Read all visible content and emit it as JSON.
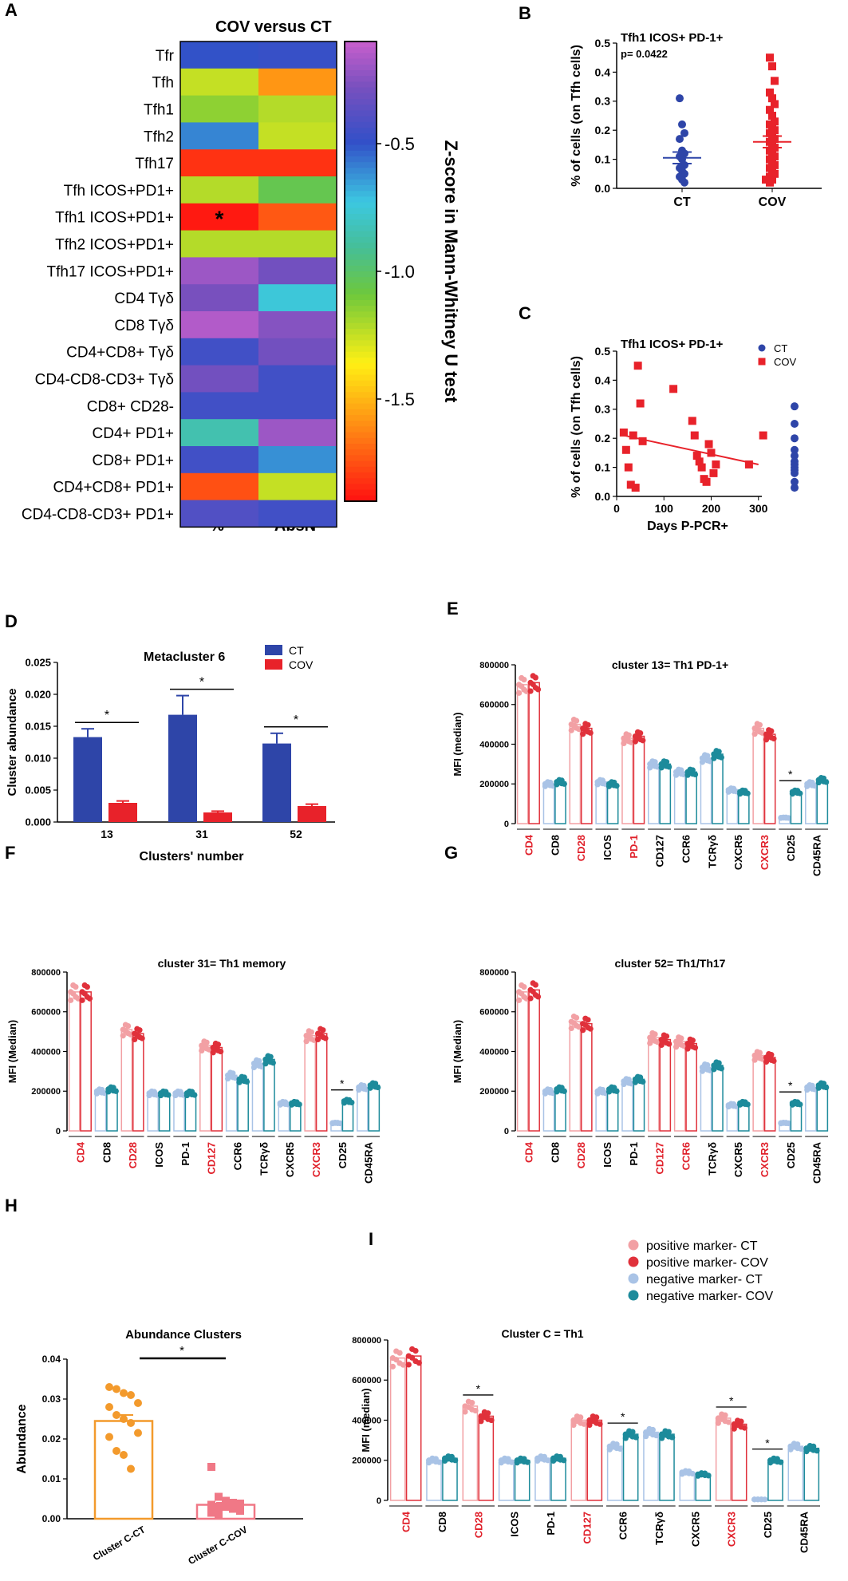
{
  "panels": {
    "A": {
      "letter": "A",
      "title": "COV versus CT",
      "columns": [
        "%",
        "AbsN"
      ],
      "colorbar_label": "Z-score in Mann-Whitney U test",
      "colorbar_ticks": [
        "-0.5",
        "-1.0",
        "-1.5"
      ],
      "star": "*"
    },
    "B": {
      "letter": "B",
      "title": "Tfh1 ICOS+ PD-1+",
      "pvalue": "p= 0.0422",
      "ylabel": "% of cells (on Tfh cells)"
    },
    "C": {
      "letter": "C",
      "title": "Tfh1 ICOS+ PD-1+",
      "ylabel": "% of cells (on Tfh cells)",
      "xlabel": "Days P-PCR+"
    },
    "D": {
      "letter": "D",
      "title": "Metacluster 6",
      "ylabel": "Cluster abundance",
      "xlabel": "Clusters' number"
    },
    "E": {
      "letter": "E",
      "title": "cluster 13= Th1 PD-1+",
      "ylabel": "MFI (median)"
    },
    "F": {
      "letter": "F",
      "title": "cluster 31= Th1 memory",
      "ylabel": "MFI (Median)"
    },
    "G": {
      "letter": "G",
      "title": "cluster 52= Th1/Th17",
      "ylabel": "MFI (Median)"
    },
    "H": {
      "letter": "H",
      "title": "Abundance Clusters",
      "ylabel": "Abundance"
    },
    "I": {
      "letter": "I",
      "title": "Cluster C = Th1",
      "ylabel": "MFI (median)",
      "legend": [
        "positive marker- CT",
        "positive marker- COV",
        "negative marker- CT",
        "negative marker- COV"
      ]
    }
  },
  "colors": {
    "ct_blue": "#2e45a8",
    "cov_red": "#e8222a",
    "pos_ct": "#f2a0a4",
    "pos_cov": "#e0313b",
    "neg_ct": "#a9c3e6",
    "neg_cov": "#1d8b9b",
    "h_ct": "#f39a2c",
    "h_cov": "#f07886"
  },
  "chart_data": [
    {
      "panel": "A",
      "type": "heatmap",
      "title": "COV versus CT",
      "rows": [
        "Tfr",
        "Tfh",
        "Tfh1",
        "Tfh2",
        "Tfh17",
        "Tfh ICOS+PD1+",
        "Tfh1 ICOS+PD1+",
        "Tfh2 ICOS+PD1+",
        "Tfh17 ICOS+PD1+",
        "CD4 Tγδ",
        "CD8 Tγδ",
        "CD4+CD8+ Tγδ",
        "CD4-CD8-CD3+ Tγδ",
        "CD8+ CD28-",
        "CD4+ PD1+",
        "CD8+ PD1+",
        "CD4+CD8+ PD1+",
        "CD4-CD8-CD3+ PD1+"
      ],
      "columns": [
        "%",
        "AbsN"
      ],
      "values": [
        [
          -0.5,
          -0.48
        ],
        [
          -1.25,
          -1.58
        ],
        [
          -1.15,
          -1.22
        ],
        [
          -0.6,
          -1.25
        ],
        [
          -1.82,
          -1.82
        ],
        [
          -1.22,
          -1.05
        ],
        [
          -1.88,
          -1.73
        ],
        [
          -1.22,
          -1.22
        ],
        [
          -0.2,
          -0.3
        ],
        [
          -0.28,
          -0.75
        ],
        [
          -0.15,
          -0.25
        ],
        [
          -0.45,
          -0.3
        ],
        [
          -0.3,
          -0.45
        ],
        [
          -0.45,
          -0.45
        ],
        [
          -0.85,
          -0.2
        ],
        [
          -0.45,
          -0.62
        ],
        [
          -1.75,
          -1.25
        ],
        [
          -0.4,
          -0.45
        ]
      ],
      "significant": [
        [
          6,
          0
        ]
      ],
      "color_scale": {
        "min": -1.9,
        "max": -0.1
      },
      "colorbar_ticks": [
        -0.5,
        -1.0,
        -1.5
      ],
      "colorbar_label": "Z-score in Mann-Whitney U test"
    },
    {
      "panel": "B",
      "type": "scatter",
      "title": "Tfh1 ICOS+ PD-1+",
      "annotation": "p= 0.0422",
      "ylabel": "% of cells (on Tfh cells)",
      "ylim": [
        0,
        0.5
      ],
      "yticks": [
        "0.0",
        "0.1",
        "0.2",
        "0.3",
        "0.4",
        "0.5"
      ],
      "categories": [
        "CT",
        "COV"
      ],
      "series": [
        {
          "name": "CT",
          "values": [
            0.31,
            0.22,
            0.19,
            0.17,
            0.13,
            0.12,
            0.11,
            0.1,
            0.08,
            0.07,
            0.06,
            0.05,
            0.04,
            0.03,
            0.02
          ],
          "mean": 0.105,
          "sem": 0.02
        },
        {
          "name": "COV",
          "values": [
            0.45,
            0.42,
            0.37,
            0.33,
            0.31,
            0.29,
            0.27,
            0.25,
            0.23,
            0.22,
            0.21,
            0.2,
            0.19,
            0.18,
            0.17,
            0.16,
            0.15,
            0.14,
            0.13,
            0.12,
            0.11,
            0.1,
            0.09,
            0.08,
            0.07,
            0.06,
            0.05,
            0.04,
            0.03,
            0.03,
            0.02
          ],
          "mean": 0.16,
          "sem": 0.02
        }
      ]
    },
    {
      "panel": "C",
      "type": "scatter",
      "title": "Tfh1 ICOS+ PD-1+",
      "xlabel": "Days P-PCR+",
      "ylabel": "% of cells (on Tfh cells)",
      "xlim": [
        0,
        400
      ],
      "ylim": [
        0,
        0.5
      ],
      "xticks": [
        "0",
        "100",
        "200",
        "300"
      ],
      "yticks": [
        "0.0",
        "0.1",
        "0.2",
        "0.3",
        "0.4",
        "0.5"
      ],
      "series": [
        {
          "name": "CT",
          "x": [
            400,
            400,
            400,
            400,
            400,
            400,
            400,
            400,
            400,
            400,
            400,
            400
          ],
          "y": [
            0.31,
            0.25,
            0.2,
            0.16,
            0.14,
            0.12,
            0.11,
            0.1,
            0.09,
            0.08,
            0.05,
            0.03
          ]
        },
        {
          "name": "COV",
          "x": [
            15,
            20,
            25,
            30,
            35,
            40,
            45,
            50,
            55,
            120,
            160,
            165,
            170,
            175,
            180,
            185,
            190,
            195,
            200,
            205,
            210,
            280,
            310
          ],
          "y": [
            0.22,
            0.16,
            0.1,
            0.04,
            0.21,
            0.03,
            0.45,
            0.32,
            0.19,
            0.37,
            0.26,
            0.21,
            0.14,
            0.12,
            0.1,
            0.06,
            0.05,
            0.18,
            0.15,
            0.08,
            0.11,
            0.11,
            0.21
          ]
        }
      ],
      "trendline": {
        "x": [
          15,
          300
        ],
        "y": [
          0.21,
          0.11
        ]
      }
    },
    {
      "panel": "D",
      "type": "bar",
      "title": "Metacluster 6",
      "xlabel": "Clusters' number",
      "ylabel": "Cluster abundance",
      "categories": [
        "13",
        "31",
        "52"
      ],
      "ylim": [
        0,
        0.025
      ],
      "yticks": [
        "0.000",
        "0.005",
        "0.010",
        "0.015",
        "0.020",
        "0.025"
      ],
      "series": [
        {
          "name": "CT",
          "values": [
            0.0133,
            0.0168,
            0.0123
          ],
          "errors": [
            0.0013,
            0.003,
            0.0016
          ]
        },
        {
          "name": "COV",
          "values": [
            0.003,
            0.0015,
            0.0025
          ],
          "errors": [
            0.0003,
            0.0002,
            0.0003
          ]
        }
      ],
      "significance": [
        "*",
        "*",
        "*"
      ]
    },
    {
      "panel": "E",
      "type": "bar",
      "title": "cluster 13= Th1 PD-1+",
      "ylabel": "MFI (median)",
      "ylim": [
        0,
        800000
      ],
      "yticks": [
        "0",
        "200000",
        "400000",
        "600000",
        "800000"
      ],
      "categories": [
        "CD4",
        "CD8",
        "CD28",
        "ICOS",
        "PD-1",
        "CD127",
        "CCR6",
        "TCRγδ",
        "CXCR5",
        "CXCR3",
        "CD25",
        "CD45RA"
      ],
      "positive_markers": [
        "CD4",
        "CD28",
        "PD-1",
        "CXCR3"
      ],
      "series": [
        {
          "name": "CT",
          "values": [
            700000,
            200000,
            500000,
            210000,
            430000,
            300000,
            260000,
            330000,
            170000,
            480000,
            30000,
            200000
          ]
        },
        {
          "name": "COV",
          "values": [
            710000,
            210000,
            480000,
            200000,
            440000,
            300000,
            260000,
            350000,
            160000,
            450000,
            160000,
            220000
          ]
        }
      ],
      "significant_markers": [
        "CD25"
      ]
    },
    {
      "panel": "F",
      "type": "bar",
      "title": "cluster 31= Th1 memory",
      "ylabel": "MFI (Median)",
      "ylim": [
        0,
        800000
      ],
      "yticks": [
        "0",
        "200000",
        "400000",
        "600000",
        "800000"
      ],
      "categories": [
        "CD4",
        "CD8",
        "CD28",
        "ICOS",
        "PD-1",
        "CD127",
        "CCR6",
        "TCRγδ",
        "CXCR5",
        "CXCR3",
        "CD25",
        "CD45RA"
      ],
      "positive_markers": [
        "CD4",
        "CD28",
        "CD127",
        "CXCR3"
      ],
      "series": [
        {
          "name": "CT",
          "values": [
            700000,
            200000,
            510000,
            190000,
            190000,
            430000,
            280000,
            340000,
            140000,
            480000,
            40000,
            220000
          ]
        },
        {
          "name": "COV",
          "values": [
            700000,
            210000,
            490000,
            190000,
            190000,
            420000,
            260000,
            360000,
            140000,
            490000,
            150000,
            230000
          ]
        }
      ],
      "significant_markers": [
        "CD25"
      ]
    },
    {
      "panel": "G",
      "type": "bar",
      "title": "cluster 52= Th1/Th17",
      "ylabel": "MFI (Median)",
      "ylim": [
        0,
        800000
      ],
      "yticks": [
        "0",
        "200000",
        "400000",
        "600000",
        "800000"
      ],
      "categories": [
        "CD4",
        "CD8",
        "CD28",
        "ICOS",
        "PD-1",
        "CD127",
        "CCR6",
        "TCRγδ",
        "CXCR5",
        "CXCR3",
        "CD25",
        "CD45RA"
      ],
      "positive_markers": [
        "CD4",
        "CD28",
        "CD127",
        "CCR6",
        "CXCR3"
      ],
      "series": [
        {
          "name": "CT",
          "values": [
            700000,
            200000,
            550000,
            200000,
            250000,
            470000,
            450000,
            320000,
            130000,
            380000,
            40000,
            220000
          ]
        },
        {
          "name": "COV",
          "values": [
            710000,
            210000,
            540000,
            210000,
            260000,
            460000,
            440000,
            330000,
            140000,
            370000,
            140000,
            230000
          ]
        }
      ],
      "significant_markers": [
        "CD25"
      ]
    },
    {
      "panel": "H",
      "type": "bar",
      "title": "Abundance Clusters",
      "ylabel": "Abundance",
      "categories": [
        "Cluster C-CT",
        "Cluster C-COV"
      ],
      "ylim": [
        0,
        0.04
      ],
      "yticks": [
        "0.00",
        "0.01",
        "0.02",
        "0.03",
        "0.04"
      ],
      "series": [
        {
          "name": "Cluster C-CT",
          "mean": 0.0245,
          "sem": 0.0015,
          "points": [
            0.033,
            0.0325,
            0.0315,
            0.031,
            0.029,
            0.028,
            0.026,
            0.025,
            0.024,
            0.0215,
            0.0205,
            0.017,
            0.016,
            0.0125
          ]
        },
        {
          "name": "Cluster C-COV",
          "mean": 0.0035,
          "sem": 0.0005,
          "points": [
            0.013,
            0.0055,
            0.0045,
            0.004,
            0.0038,
            0.0035,
            0.003,
            0.003,
            0.0025,
            0.002,
            0.0015,
            0.001
          ]
        }
      ],
      "significance": "*"
    },
    {
      "panel": "I",
      "type": "bar",
      "title": "Cluster C = Th1",
      "ylabel": "MFI (median)",
      "ylim": [
        0,
        800000
      ],
      "yticks": [
        "0",
        "200000",
        "400000",
        "600000",
        "800000"
      ],
      "categories": [
        "CD4",
        "CD8",
        "CD28",
        "ICOS",
        "PD-1",
        "CD127",
        "CCR6",
        "TCRγδ",
        "CXCR5",
        "CXCR3",
        "CD25",
        "CD45RA"
      ],
      "positive_markers": [
        "CD4",
        "CD28",
        "CD127",
        "CXCR3"
      ],
      "series": [
        {
          "name": "CT",
          "values": [
            710000,
            200000,
            470000,
            200000,
            210000,
            400000,
            270000,
            340000,
            140000,
            410000,
            5000,
            270000
          ]
        },
        {
          "name": "COV",
          "values": [
            720000,
            210000,
            420000,
            200000,
            210000,
            400000,
            330000,
            330000,
            130000,
            380000,
            200000,
            260000
          ]
        }
      ],
      "significant_markers": [
        "CD28",
        "CCR6",
        "CXCR3",
        "CD25"
      ],
      "legend": [
        "positive marker- CT",
        "positive marker- COV",
        "negative marker- CT",
        "negative marker- COV"
      ]
    }
  ]
}
